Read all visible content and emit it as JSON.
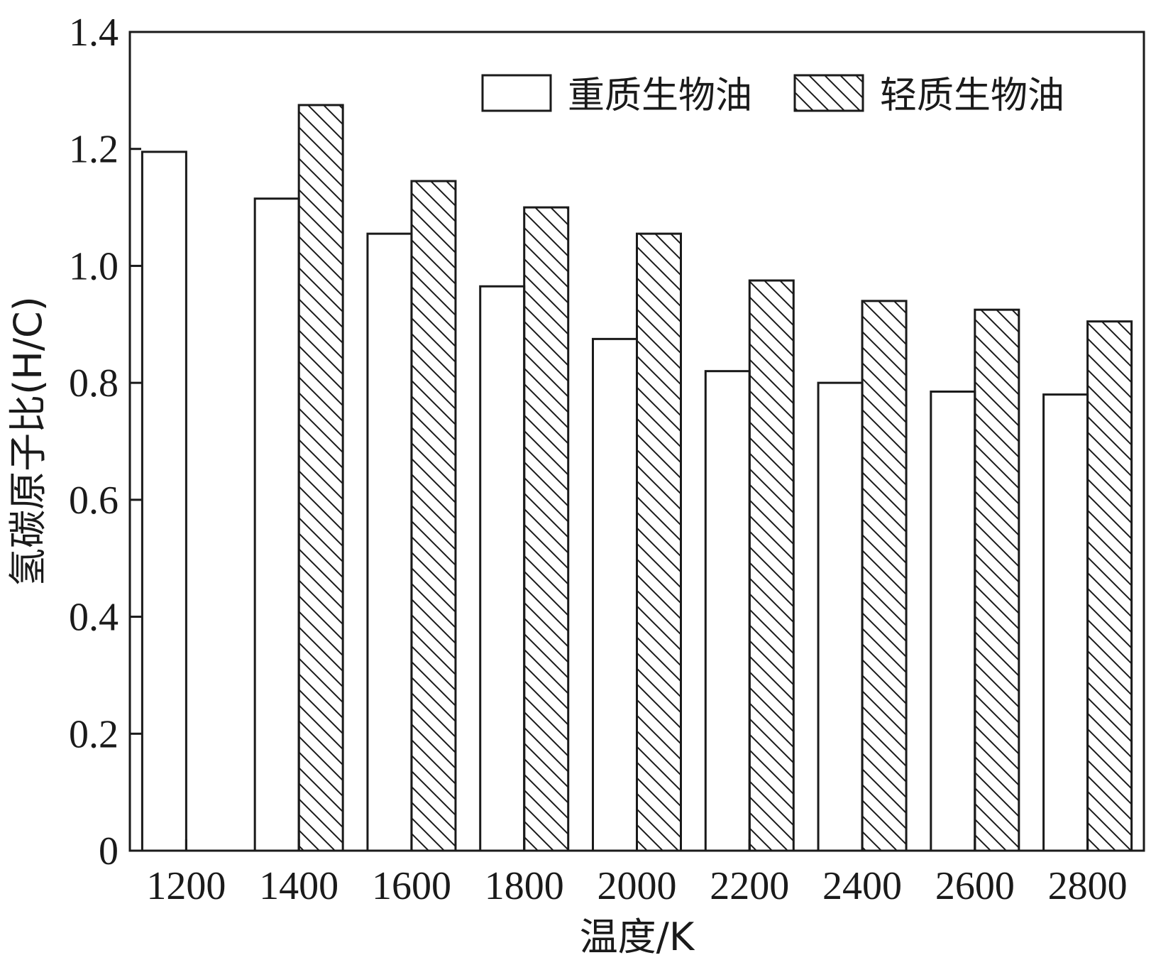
{
  "chart_data": {
    "type": "bar",
    "title": "",
    "xlabel": "温度/K",
    "ylabel": "氢碳原子比(H/C)",
    "categories": [
      "1200",
      "1400",
      "1600",
      "1800",
      "2000",
      "2200",
      "2400",
      "2600",
      "2800"
    ],
    "series": [
      {
        "name": "重质生物油",
        "values": [
          1.195,
          1.115,
          1.055,
          0.965,
          0.875,
          0.82,
          0.8,
          0.785,
          0.78
        ],
        "fill": "none"
      },
      {
        "name": "轻质生物油",
        "values": [
          null,
          1.275,
          1.145,
          1.1,
          1.055,
          0.975,
          0.94,
          0.925,
          0.905
        ],
        "fill": "hatch"
      }
    ],
    "ylim": [
      0,
      1.4
    ],
    "yticks": [
      "0",
      "0.2",
      "0.4",
      "0.6",
      "0.8",
      "1.0",
      "1.2",
      "1.4"
    ],
    "grid": false,
    "legend_position": "top-right"
  }
}
